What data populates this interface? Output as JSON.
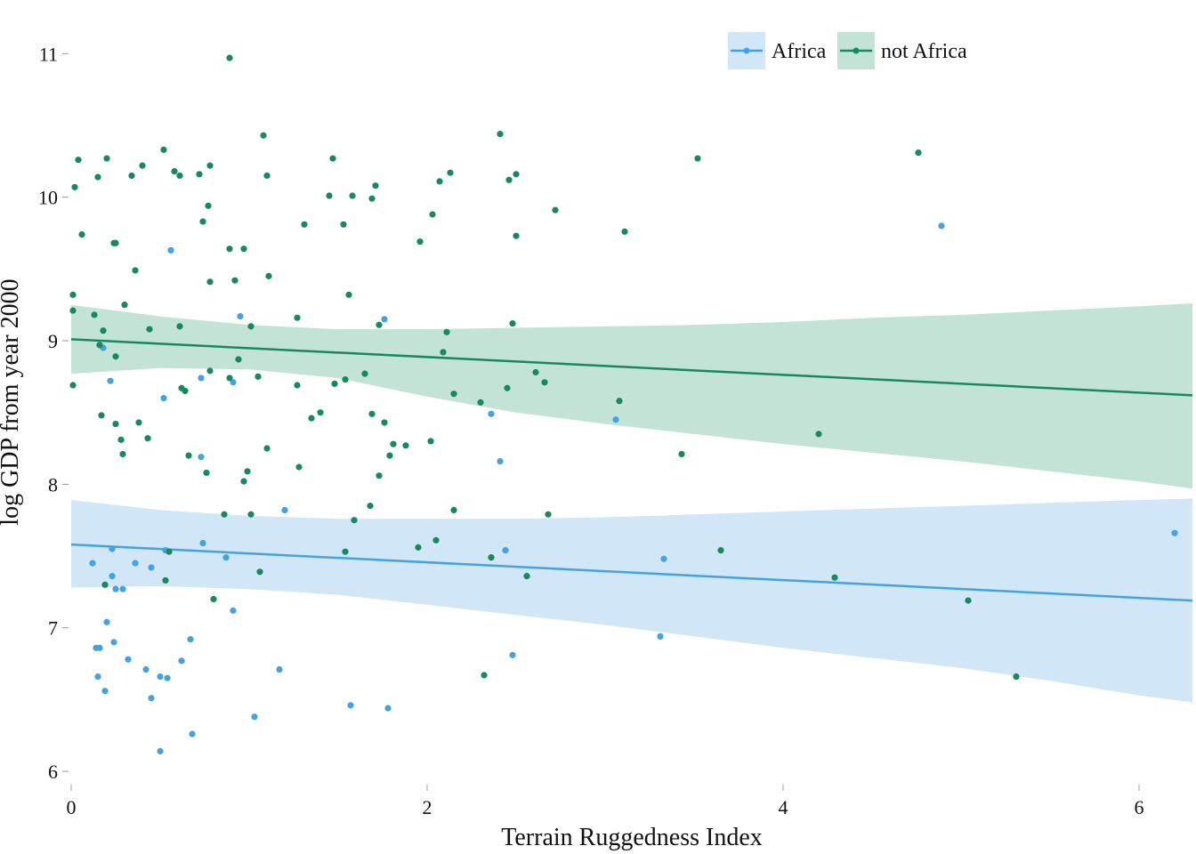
{
  "chart_data": {
    "type": "scatter",
    "title": "",
    "xlabel": "Terrain Ruggedness Index",
    "ylabel": "log GDP from year 2000",
    "xlim": [
      0,
      6.3
    ],
    "ylim": [
      5.92,
      11.2
    ],
    "x_ticks": [
      0,
      2,
      4,
      6
    ],
    "x_tick_labels": [
      "0",
      "2",
      "4",
      "6"
    ],
    "y_ticks": [
      6,
      7,
      8,
      9,
      10,
      11
    ],
    "y_tick_labels": [
      "6",
      "7",
      "8",
      "9",
      "10",
      "11"
    ],
    "grid": false,
    "legend": {
      "position": "top-right",
      "entries": [
        "Africa",
        "not Africa"
      ]
    },
    "colors": {
      "Africa": "#44a2e0",
      "Africa_band": "#d1e6f6",
      "not Africa": "#168a5e",
      "not Africa_band": "#c3e3d6"
    },
    "series": [
      {
        "name": "Africa",
        "points": [
          [
            0.12,
            7.45
          ],
          [
            0.14,
            6.86
          ],
          [
            0.15,
            6.66
          ],
          [
            0.16,
            6.86
          ],
          [
            0.18,
            8.95
          ],
          [
            0.19,
            6.56
          ],
          [
            0.2,
            7.04
          ],
          [
            0.22,
            8.72
          ],
          [
            0.23,
            7.55
          ],
          [
            0.23,
            7.36
          ],
          [
            0.24,
            6.9
          ],
          [
            0.25,
            7.27
          ],
          [
            0.29,
            7.27
          ],
          [
            0.32,
            6.78
          ],
          [
            0.36,
            7.45
          ],
          [
            0.42,
            6.71
          ],
          [
            0.45,
            7.42
          ],
          [
            0.45,
            6.51
          ],
          [
            0.5,
            6.66
          ],
          [
            0.5,
            6.14
          ],
          [
            0.52,
            8.6
          ],
          [
            0.53,
            7.54
          ],
          [
            0.54,
            6.65
          ],
          [
            0.56,
            9.63
          ],
          [
            0.62,
            6.77
          ],
          [
            0.67,
            6.92
          ],
          [
            0.68,
            6.26
          ],
          [
            0.73,
            8.19
          ],
          [
            0.73,
            8.74
          ],
          [
            0.74,
            7.59
          ],
          [
            0.87,
            7.49
          ],
          [
            0.91,
            7.12
          ],
          [
            0.91,
            8.71
          ],
          [
            0.95,
            9.17
          ],
          [
            1.03,
            6.38
          ],
          [
            1.17,
            6.71
          ],
          [
            1.2,
            7.82
          ],
          [
            1.57,
            6.46
          ],
          [
            1.76,
            9.15
          ],
          [
            1.78,
            6.44
          ],
          [
            2.36,
            8.49
          ],
          [
            2.41,
            8.16
          ],
          [
            2.44,
            7.54
          ],
          [
            2.48,
            6.81
          ],
          [
            3.06,
            8.45
          ],
          [
            3.31,
            6.94
          ],
          [
            3.33,
            7.48
          ],
          [
            4.89,
            9.8
          ],
          [
            6.2,
            7.66
          ]
        ],
        "fit": {
          "x": [
            0,
            6.3
          ],
          "y": [
            7.58,
            7.19
          ]
        },
        "ci": {
          "x": [
            0,
            0.5,
            1,
            1.5,
            2,
            2.5,
            3,
            3.5,
            4,
            4.5,
            5,
            5.5,
            6,
            6.3
          ],
          "lower": [
            7.28,
            7.29,
            7.27,
            7.23,
            7.16,
            7.09,
            7.02,
            6.94,
            6.86,
            6.79,
            6.72,
            6.63,
            6.53,
            6.48
          ],
          "upper": [
            7.89,
            7.82,
            7.78,
            7.76,
            7.76,
            7.76,
            7.77,
            7.79,
            7.81,
            7.83,
            7.85,
            7.87,
            7.89,
            7.9
          ]
        }
      },
      {
        "name": "not Africa",
        "points": [
          [
            0.01,
            9.32
          ],
          [
            0.01,
            9.21
          ],
          [
            0.01,
            8.69
          ],
          [
            0.02,
            10.07
          ],
          [
            0.04,
            10.26
          ],
          [
            0.06,
            9.74
          ],
          [
            0.13,
            9.18
          ],
          [
            0.15,
            10.14
          ],
          [
            0.16,
            8.97
          ],
          [
            0.17,
            8.48
          ],
          [
            0.18,
            9.07
          ],
          [
            0.19,
            7.3
          ],
          [
            0.2,
            10.27
          ],
          [
            0.24,
            9.68
          ],
          [
            0.25,
            9.68
          ],
          [
            0.25,
            8.89
          ],
          [
            0.25,
            8.42
          ],
          [
            0.28,
            8.31
          ],
          [
            0.29,
            8.21
          ],
          [
            0.3,
            9.25
          ],
          [
            0.34,
            10.15
          ],
          [
            0.36,
            9.49
          ],
          [
            0.38,
            8.43
          ],
          [
            0.4,
            10.22
          ],
          [
            0.43,
            8.32
          ],
          [
            0.44,
            9.08
          ],
          [
            0.52,
            10.33
          ],
          [
            0.53,
            7.33
          ],
          [
            0.55,
            7.53
          ],
          [
            0.58,
            10.18
          ],
          [
            0.61,
            10.15
          ],
          [
            0.61,
            9.1
          ],
          [
            0.62,
            8.67
          ],
          [
            0.64,
            8.65
          ],
          [
            0.66,
            8.2
          ],
          [
            0.72,
            10.16
          ],
          [
            0.74,
            9.83
          ],
          [
            0.76,
            8.08
          ],
          [
            0.77,
            9.94
          ],
          [
            0.78,
            10.22
          ],
          [
            0.78,
            9.41
          ],
          [
            0.78,
            8.79
          ],
          [
            0.8,
            7.2
          ],
          [
            0.86,
            7.79
          ],
          [
            0.89,
            10.97
          ],
          [
            0.89,
            9.64
          ],
          [
            0.89,
            8.74
          ],
          [
            0.92,
            9.42
          ],
          [
            0.94,
            8.87
          ],
          [
            0.97,
            9.64
          ],
          [
            0.97,
            8.02
          ],
          [
            0.99,
            8.09
          ],
          [
            1.01,
            9.1
          ],
          [
            1.01,
            7.79
          ],
          [
            1.05,
            8.75
          ],
          [
            1.06,
            7.39
          ],
          [
            1.08,
            10.43
          ],
          [
            1.1,
            10.15
          ],
          [
            1.1,
            8.25
          ],
          [
            1.11,
            9.45
          ],
          [
            1.27,
            9.16
          ],
          [
            1.27,
            8.69
          ],
          [
            1.28,
            8.12
          ],
          [
            1.31,
            9.81
          ],
          [
            1.35,
            8.46
          ],
          [
            1.4,
            8.5
          ],
          [
            1.45,
            10.01
          ],
          [
            1.47,
            10.27
          ],
          [
            1.48,
            8.7
          ],
          [
            1.53,
            9.81
          ],
          [
            1.54,
            8.73
          ],
          [
            1.54,
            7.53
          ],
          [
            1.56,
            9.32
          ],
          [
            1.58,
            10.01
          ],
          [
            1.59,
            7.75
          ],
          [
            1.65,
            8.77
          ],
          [
            1.68,
            7.85
          ],
          [
            1.69,
            8.49
          ],
          [
            1.69,
            9.99
          ],
          [
            1.71,
            10.08
          ],
          [
            1.73,
            8.06
          ],
          [
            1.73,
            9.11
          ],
          [
            1.76,
            8.43
          ],
          [
            1.79,
            8.2
          ],
          [
            1.81,
            8.28
          ],
          [
            1.88,
            8.27
          ],
          [
            1.95,
            7.56
          ],
          [
            1.96,
            9.69
          ],
          [
            2.02,
            8.3
          ],
          [
            2.03,
            9.88
          ],
          [
            2.05,
            7.61
          ],
          [
            2.07,
            10.11
          ],
          [
            2.09,
            8.92
          ],
          [
            2.11,
            9.06
          ],
          [
            2.13,
            10.17
          ],
          [
            2.15,
            8.63
          ],
          [
            2.15,
            7.82
          ],
          [
            2.3,
            8.57
          ],
          [
            2.32,
            6.67
          ],
          [
            2.36,
            7.49
          ],
          [
            2.41,
            10.44
          ],
          [
            2.45,
            8.67
          ],
          [
            2.46,
            10.12
          ],
          [
            2.48,
            9.12
          ],
          [
            2.5,
            10.16
          ],
          [
            2.5,
            9.73
          ],
          [
            2.56,
            7.36
          ],
          [
            2.61,
            8.78
          ],
          [
            2.66,
            8.71
          ],
          [
            2.68,
            7.79
          ],
          [
            2.72,
            9.91
          ],
          [
            3.08,
            8.58
          ],
          [
            3.11,
            9.76
          ],
          [
            3.43,
            8.21
          ],
          [
            3.52,
            10.27
          ],
          [
            3.65,
            7.54
          ],
          [
            4.2,
            8.35
          ],
          [
            4.29,
            7.35
          ],
          [
            4.76,
            10.31
          ],
          [
            5.04,
            7.19
          ],
          [
            5.31,
            6.66
          ]
        ],
        "fit": {
          "x": [
            0,
            6.3
          ],
          "y": [
            9.01,
            8.62
          ]
        },
        "ci": {
          "x": [
            0,
            0.5,
            1,
            1.5,
            2,
            2.5,
            3,
            3.5,
            4,
            4.5,
            5,
            5.5,
            6,
            6.3
          ],
          "lower": [
            8.77,
            8.81,
            8.8,
            8.74,
            8.61,
            8.5,
            8.42,
            8.35,
            8.28,
            8.22,
            8.16,
            8.09,
            8.02,
            7.97
          ],
          "upper": [
            9.25,
            9.17,
            9.11,
            9.08,
            9.08,
            9.09,
            9.1,
            9.11,
            9.13,
            9.16,
            9.18,
            9.21,
            9.24,
            9.26
          ]
        }
      }
    ]
  }
}
